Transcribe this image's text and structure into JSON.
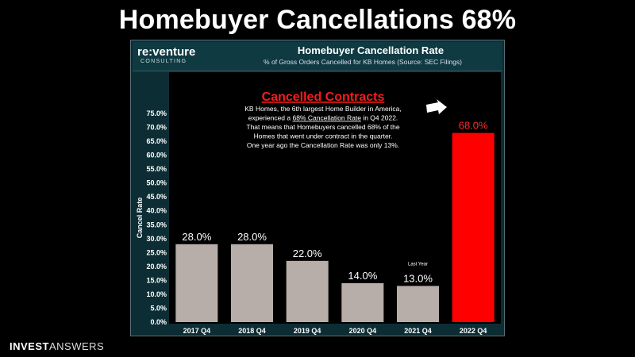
{
  "headline": "Homebuyer Cancellations 68%",
  "brand": {
    "name": "re:venture",
    "sub": "CONSULTING"
  },
  "footer_logo": {
    "bold": "INVEST",
    "light": "ANSWERS"
  },
  "colors": {
    "bar": "#b7aea9",
    "highlight": "#ff0000",
    "panel": "#0d2d35",
    "plot_bg": "#000000"
  },
  "chart_data": {
    "type": "bar",
    "title": "Homebuyer Cancellation Rate",
    "subtitle": "% of Gross Orders Cancelled for KB Homes (Source: SEC Filings)",
    "ylabel": "Cancel Rate",
    "xlabel": "",
    "categories": [
      "2017 Q4",
      "2018 Q4",
      "2019 Q4",
      "2020 Q4",
      "2021 Q4",
      "2022 Q4"
    ],
    "values": [
      28.0,
      28.0,
      22.0,
      14.0,
      13.0,
      68.0
    ],
    "value_labels": [
      "28.0%",
      "28.0%",
      "22.0%",
      "14.0%",
      "13.0%",
      "68.0%"
    ],
    "highlight_index": 5,
    "ylim": [
      0,
      75
    ],
    "yticks": [
      "0.0%",
      "5.0%",
      "10.0%",
      "15.0%",
      "20.0%",
      "25.0%",
      "30.0%",
      "35.0%",
      "40.0%",
      "45.0%",
      "50.0%",
      "55.0%",
      "60.0%",
      "65.0%",
      "70.0%",
      "75.0%"
    ],
    "bar_note": {
      "index": 4,
      "text": "Last Year"
    },
    "annotation": {
      "heading": "Cancelled Contracts",
      "lines": [
        "KB Homes, the 6th largest Home Builder in America,",
        [
          "experienced a ",
          "68% Cancellation Rate",
          " in Q4 2022."
        ],
        "That means that Homebuyers cancelled 68% of the",
        "Homes that went under contract in the quarter.",
        "One year ago the Cancellation Rate was only 13%."
      ]
    },
    "grid": false
  }
}
